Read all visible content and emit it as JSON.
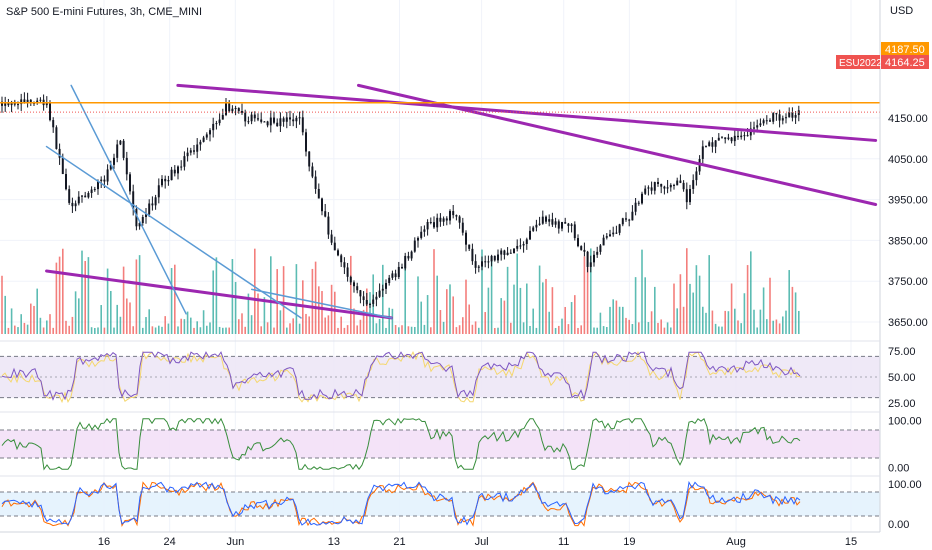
{
  "header": {
    "title": "S&P 500 E-mini Futures, 3h, CME_MINI",
    "currency": "USD"
  },
  "colors": {
    "up": "#26a69a",
    "down": "#ef5350",
    "candle": "#131722",
    "trend_purple": "#9c27b0",
    "trend_blue": "#5b9bd5",
    "horizontal_level": "#ff9800",
    "rsi_line": "#7e57c2",
    "rsi_signal": "#f5d76e",
    "rsi_band": "#ede7f6",
    "osc2_line": "#388e3c",
    "osc2_band": "#f3e0f7",
    "stoch_k": "#2962ff",
    "stoch_d": "#ff6d00",
    "stoch_band": "#e3f2fd"
  },
  "price_labels": {
    "level_value": "4187.50",
    "symbol_tag": "ESU2022",
    "last_value": "4164.25"
  },
  "chart_data": [
    {
      "type": "candlestick",
      "title": "S&P 500 E-mini Futures, 3h, CME_MINI",
      "ylabel": "USD",
      "yticks": [
        "4150.00",
        "4050.00",
        "3950.00",
        "3850.00",
        "3750.00",
        "3650.00"
      ],
      "ylim": [
        3630,
        4230
      ],
      "xticks": [
        "16",
        "24",
        "Jun",
        "13",
        "21",
        "Jul",
        "11",
        "19",
        "Aug",
        "15"
      ],
      "horizontal_level": 4187.5,
      "last_price": 4164.25,
      "anchors": [
        {
          "d": "May 9",
          "c": 4190
        },
        {
          "d": "May 11",
          "c": 4010
        },
        {
          "d": "May 12",
          "c": 3930
        },
        {
          "d": "May 16",
          "c": 4000
        },
        {
          "d": "May 18",
          "c": 4100
        },
        {
          "d": "May 20",
          "c": 3870
        },
        {
          "d": "May 23",
          "c": 3990
        },
        {
          "d": "May 26",
          "c": 4050
        },
        {
          "d": "May 31",
          "c": 4180
        },
        {
          "d": "Jun 2",
          "c": 4150
        },
        {
          "d": "Jun 6",
          "c": 4140
        },
        {
          "d": "Jun 9",
          "c": 4150
        },
        {
          "d": "Jun 10",
          "c": 4030
        },
        {
          "d": "Jun 13",
          "c": 3830
        },
        {
          "d": "Jun 16",
          "c": 3720
        },
        {
          "d": "Jun 17",
          "c": 3690
        },
        {
          "d": "Jun 21",
          "c": 3780
        },
        {
          "d": "Jun 24",
          "c": 3880
        },
        {
          "d": "Jun 28",
          "c": 3920
        },
        {
          "d": "Jun 30",
          "c": 3790
        },
        {
          "d": "Jul 6",
          "c": 3840
        },
        {
          "d": "Jul 8",
          "c": 3900
        },
        {
          "d": "Jul 12",
          "c": 3880
        },
        {
          "d": "Jul 14",
          "c": 3790
        },
        {
          "d": "Jul 15",
          "c": 3830
        },
        {
          "d": "Jul 19",
          "c": 3910
        },
        {
          "d": "Jul 21",
          "c": 3980
        },
        {
          "d": "Jul 25",
          "c": 3990
        },
        {
          "d": "Jul 26",
          "c": 3950
        },
        {
          "d": "Jul 28",
          "c": 4080
        },
        {
          "d": "Aug 2",
          "c": 4110
        },
        {
          "d": "Aug 5",
          "c": 4150
        },
        {
          "d": "Aug 9",
          "c": 4164
        }
      ],
      "trendlines": [
        {
          "color": "purple",
          "from": {
            "d": "May 25",
            "p": 4230
          },
          "to": {
            "d": "Aug 18",
            "p": 4095
          }
        },
        {
          "color": "purple",
          "from": {
            "d": "Jun 16",
            "p": 4230
          },
          "to": {
            "d": "Aug 18",
            "p": 3938
          }
        },
        {
          "color": "purple",
          "from": {
            "d": "May 9",
            "p": 3775
          },
          "to": {
            "d": "Jun 20",
            "p": 3660
          }
        },
        {
          "color": "blue",
          "from": {
            "d": "May 12",
            "p": 4230
          },
          "to": {
            "d": "May 26",
            "p": 3670
          }
        },
        {
          "color": "blue",
          "from": {
            "d": "May 9",
            "p": 4080
          },
          "to": {
            "d": "Jun 9",
            "p": 3660
          }
        },
        {
          "color": "blue",
          "from": {
            "d": "Jun 3",
            "p": 3730
          },
          "to": {
            "d": "Jun 20",
            "p": 3660
          }
        }
      ]
    },
    {
      "type": "line",
      "title": "",
      "series": [
        {
          "values": []
        },
        {
          "values": []
        }
      ],
      "yticks": [
        "75.00",
        "50.00",
        "25.00"
      ],
      "ylim": [
        20,
        80
      ],
      "band": [
        30,
        70
      ]
    },
    {
      "type": "line",
      "title": "",
      "series": [
        {
          "values": []
        }
      ],
      "yticks": [
        "100.00",
        "0.00"
      ],
      "ylim": [
        -10,
        110
      ],
      "band": [
        20,
        80
      ]
    },
    {
      "type": "line",
      "title": "",
      "series": [
        {
          "values": []
        },
        {
          "values": []
        }
      ],
      "yticks": [
        "100.00",
        "0.00"
      ],
      "ylim": [
        -10,
        110
      ],
      "band": [
        20,
        80
      ]
    }
  ]
}
